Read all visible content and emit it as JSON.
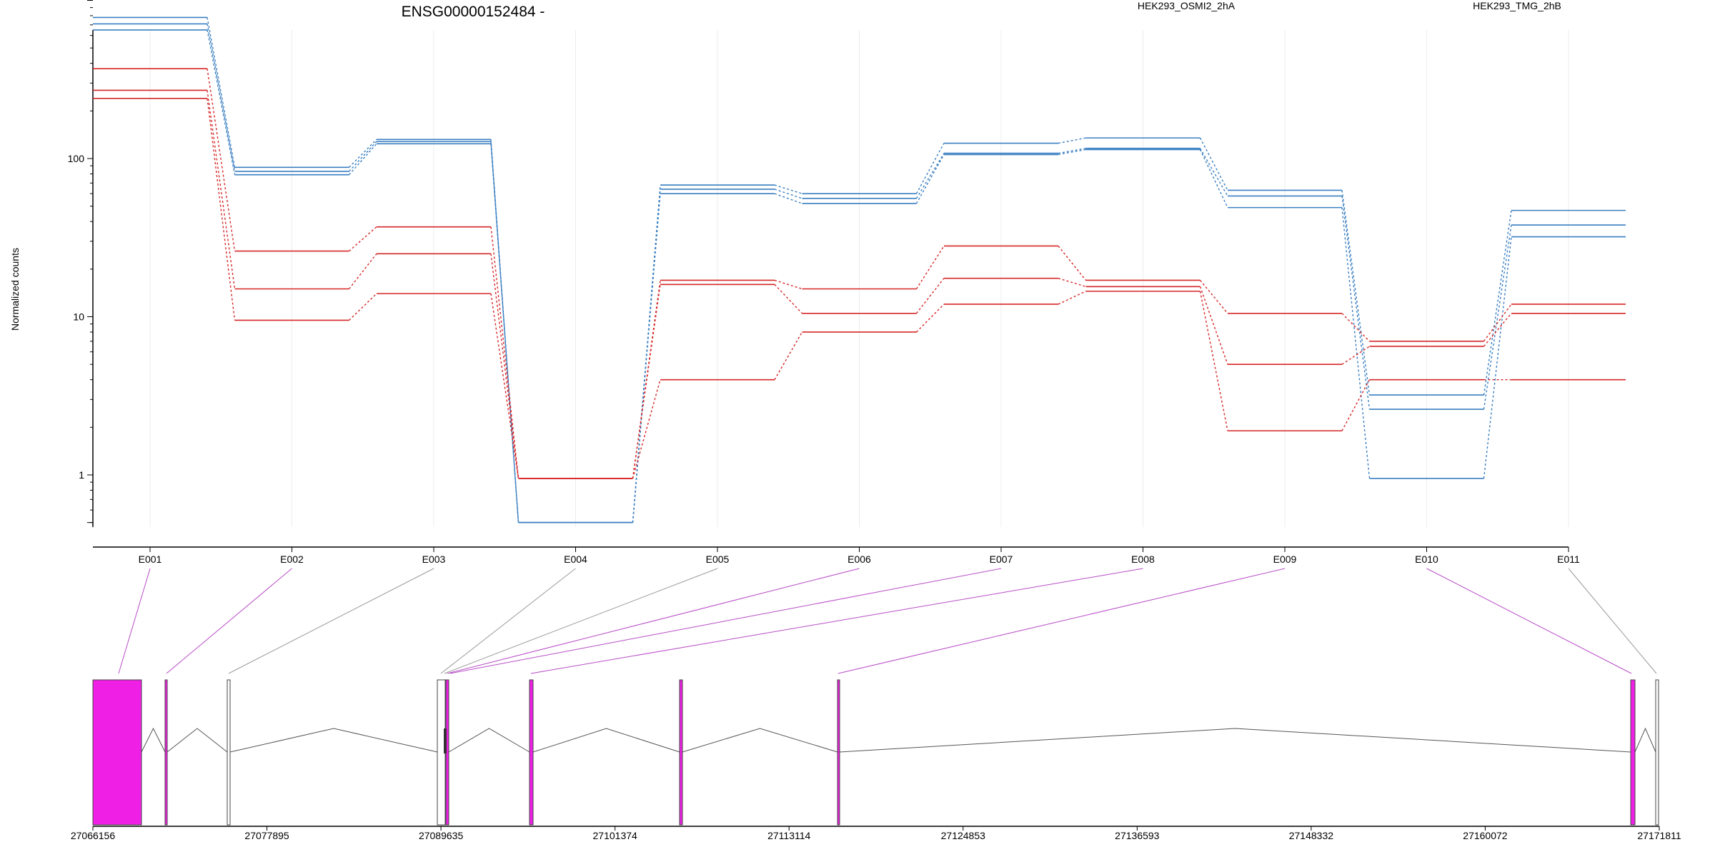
{
  "chart_data": {
    "type": "line",
    "title": "ENSG00000152484 -",
    "ylabel": "Normalized counts",
    "xlabel": "",
    "y_scale": "log10",
    "ylim": [
      0.5,
      1000
    ],
    "y_ticks": [
      1,
      10,
      100
    ],
    "categories": [
      "E001",
      "E002",
      "E003",
      "E004",
      "E005",
      "E006",
      "E007",
      "E008",
      "E009",
      "E010",
      "E011"
    ],
    "legend": [
      {
        "name": "HEK293_OSMI2_2hA",
        "color": "#d62728"
      },
      {
        "name": "HEK293_TMG_2hB",
        "color": "#3a7fc1"
      }
    ],
    "series": [
      {
        "group": "HEK293_TMG_2hB",
        "color": "#3a7fc1",
        "values": [
          780,
          88,
          132,
          0.5,
          68,
          60,
          125,
          135,
          63,
          3.2,
          47
        ]
      },
      {
        "group": "HEK293_TMG_2hB",
        "color": "#3a7fc1",
        "values": [
          710,
          83,
          128,
          0.5,
          64,
          56,
          108,
          116,
          58,
          2.6,
          38
        ]
      },
      {
        "group": "HEK293_TMG_2hB",
        "color": "#3a7fc1",
        "values": [
          650,
          79,
          124,
          0.5,
          60,
          52,
          106,
          114,
          49,
          0.95,
          32
        ]
      },
      {
        "group": "HEK293_OSMI2_2hA",
        "color": "#d62728",
        "values": [
          370,
          26,
          37,
          0.95,
          17,
          15,
          28,
          17,
          10.5,
          7,
          12
        ]
      },
      {
        "group": "HEK293_OSMI2_2hA",
        "color": "#d62728",
        "values": [
          270,
          15,
          25,
          0.95,
          16,
          10.5,
          17.5,
          15.5,
          5,
          6.5,
          10.5
        ]
      },
      {
        "group": "HEK293_OSMI2_2hA",
        "color": "#d62728",
        "values": [
          240,
          9.5,
          14,
          0.95,
          4,
          8,
          12,
          14.5,
          1.9,
          4,
          4
        ]
      }
    ],
    "gene_model": {
      "coordinate_ticks": [
        "27066156",
        "27077895",
        "27089635",
        "27101374",
        "27113114",
        "27124853",
        "27136593",
        "27148332",
        "27160072",
        "27171811"
      ],
      "exon_color_highlight": "#f01fe6",
      "exon_color_plain": "#ffffff",
      "connector_color_highlight": "#b84bc7",
      "connector_color_plain": "#999999"
    }
  }
}
